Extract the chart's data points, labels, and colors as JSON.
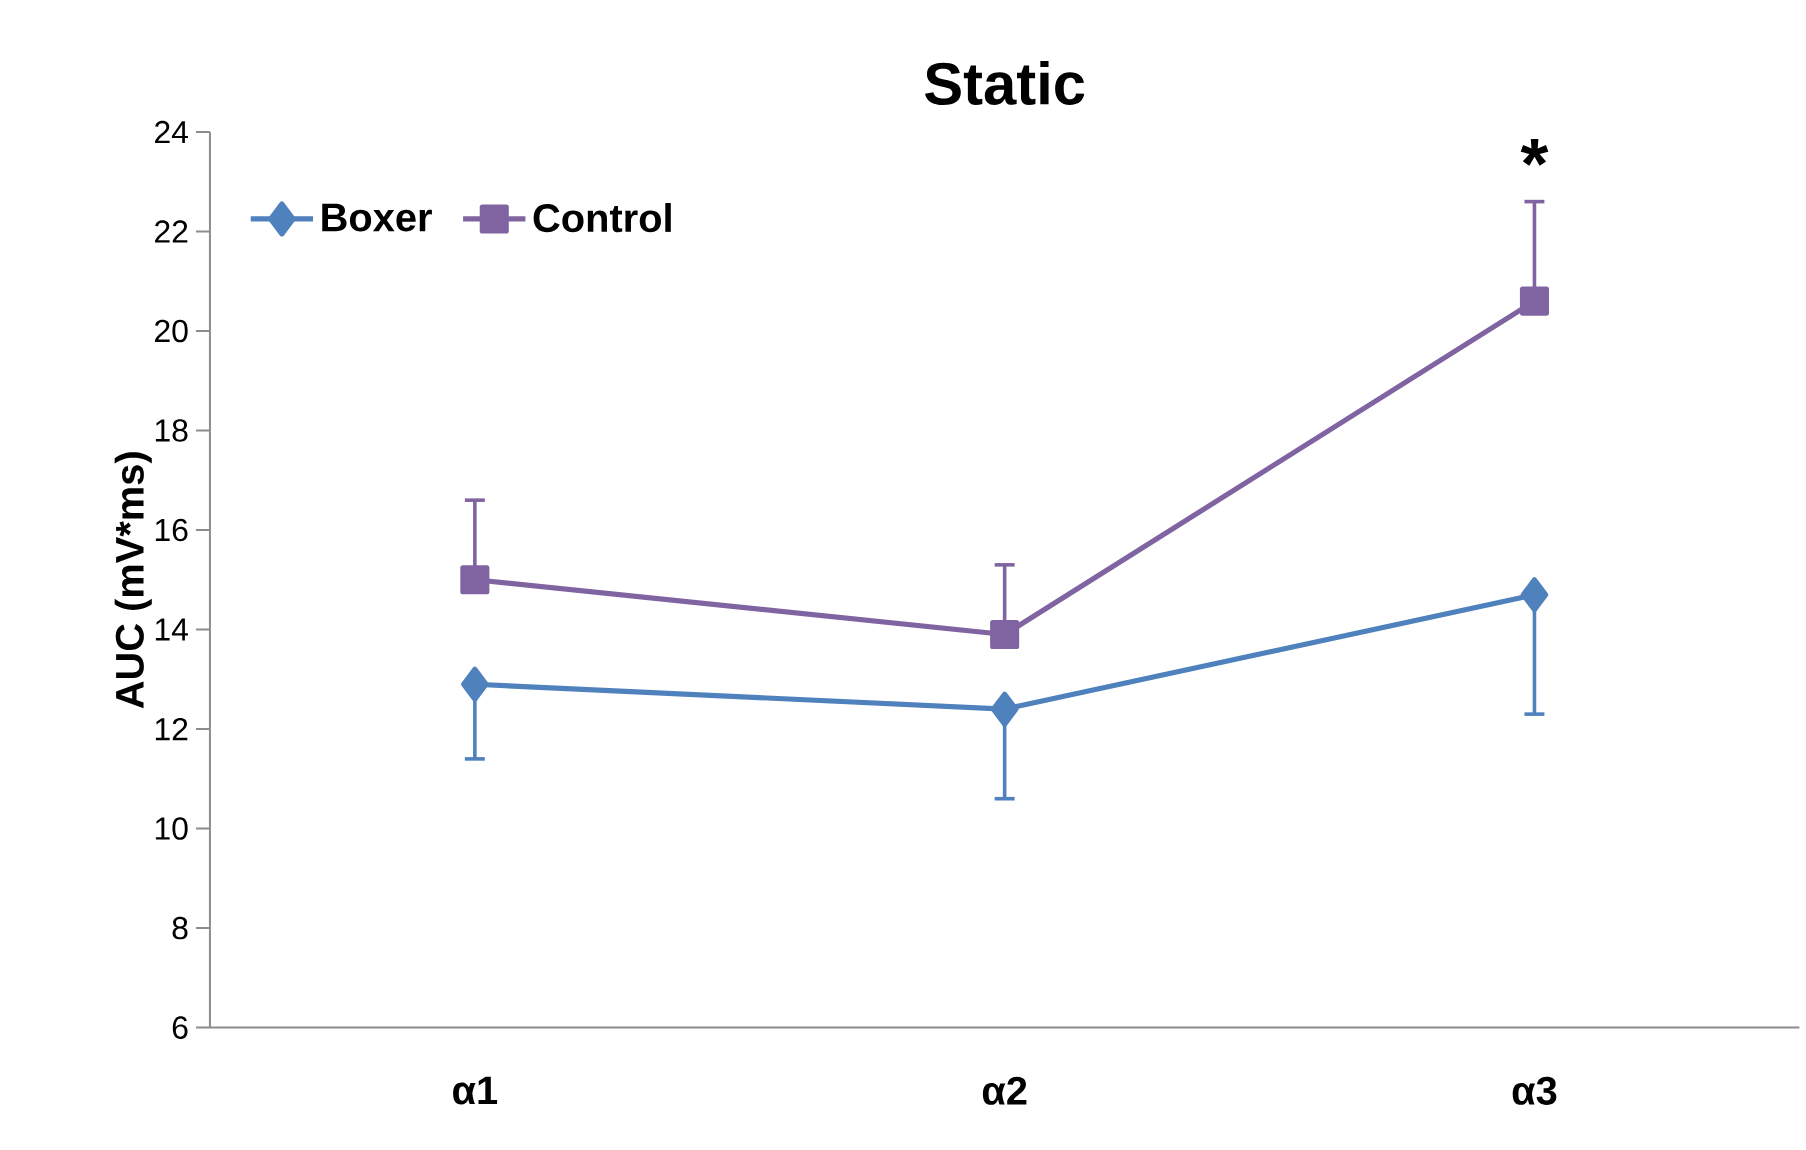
{
  "chart_data": {
    "type": "line",
    "title": "Static",
    "ylabel": "AUC (mV*ms)",
    "categories": [
      "α1",
      "α2",
      "α3"
    ],
    "series": [
      {
        "name": "Boxer",
        "color": "#4f81bd",
        "marker": "diamond",
        "values": [
          12.9,
          12.4,
          14.7
        ],
        "errors": [
          [
            11.4,
            12.9
          ],
          [
            10.6,
            12.4
          ],
          [
            12.3,
            14.7
          ]
        ]
      },
      {
        "name": "Control",
        "color": "#8064a2",
        "marker": "square",
        "values": [
          15.0,
          13.9,
          20.6
        ],
        "errors": [
          [
            15.0,
            16.6
          ],
          [
            13.9,
            15.3
          ],
          [
            20.6,
            22.6
          ]
        ]
      }
    ],
    "ylim": [
      6,
      24
    ],
    "yticks": [
      6,
      8,
      10,
      12,
      14,
      16,
      18,
      20,
      22,
      24
    ],
    "grid": false,
    "legend": "top left",
    "line_style": "solid",
    "annotations": [
      "*"
    ]
  }
}
